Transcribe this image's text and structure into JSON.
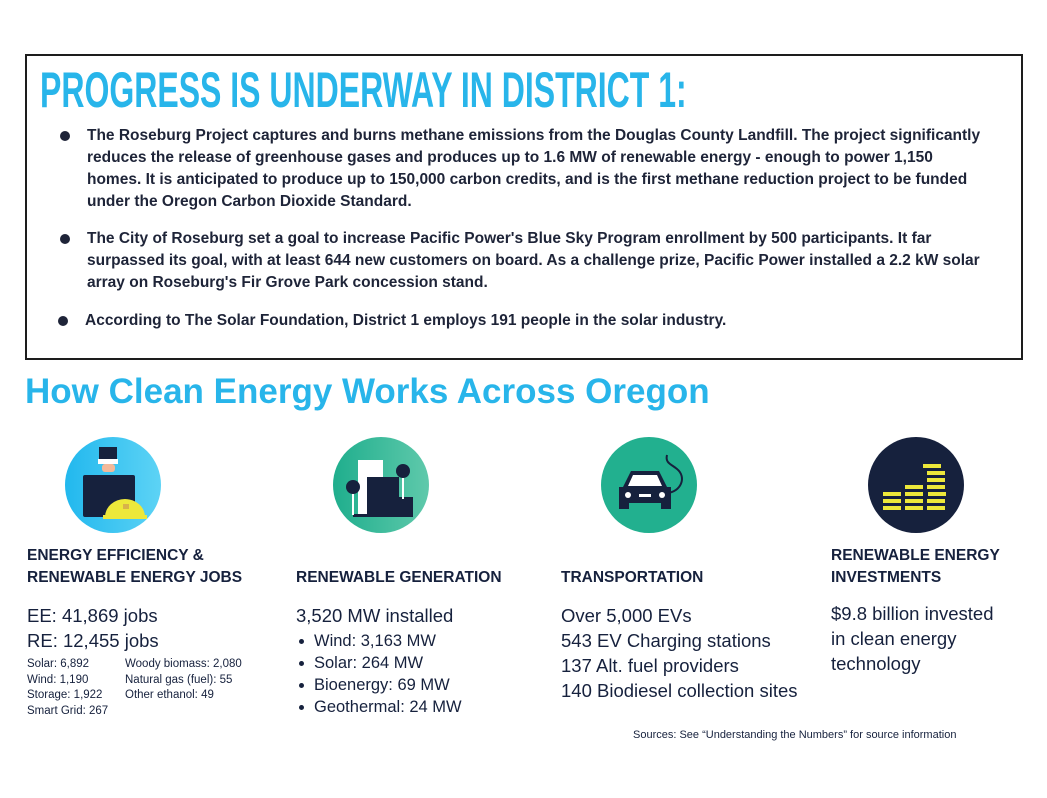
{
  "district": {
    "title": "PROGRESS IS UNDERWAY IN DISTRICT 1:",
    "bullets": [
      "The Roseburg Project captures and burns methane emissions from the Douglas County Landfill. The project significantly reduces the release of greenhouse gases and produces up to 1.6 MW of renewable energy - enough to power 1,150 homes. It is anticipated to produce up to 150,000 carbon credits, and is the first methane reduction project to be funded under the Oregon Carbon Dioxide Standard.",
      "The City of Roseburg set a goal to increase Pacific Power's Blue Sky Program enrollment by 500 participants. It far surpassed its goal, with at least 644 new customers on board. As a challenge prize, Pacific Power installed a 2.2 kW solar array on Roseburg's Fir Grove Park concession stand.",
      "According to The Solar Foundation, District 1 employs 191 people in the solar industry."
    ]
  },
  "section_title": "How Clean Energy Works Across Oregon",
  "columns": {
    "jobs": {
      "icon": "briefcase-hardhat-icon",
      "heading1": "ENERGY EFFICIENCY &",
      "heading2": "RENEWABLE ENERGY JOBS",
      "ee": "EE: 41,869 jobs",
      "re": "RE: 12,455 jobs",
      "breakdown_left": [
        "Solar: 6,892",
        "Wind: 1,190",
        "Storage: 1,922",
        "Smart Grid: 267"
      ],
      "breakdown_right": [
        "Woody biomass: 2,080",
        "Natural gas (fuel): 55",
        "Other ethanol: 49"
      ]
    },
    "generation": {
      "icon": "buildings-wind-turbine-icon",
      "heading": "RENEWABLE GENERATION",
      "total": "3,520 MW installed",
      "items": [
        "Wind: 3,163 MW",
        "Solar: 264 MW",
        "Bioenergy: 69 MW",
        "Geothermal: 24 MW"
      ]
    },
    "transportation": {
      "icon": "electric-car-icon",
      "heading": "TRANSPORTATION",
      "items": [
        "Over 5,000 EVs",
        "543 EV Charging stations",
        "137 Alt. fuel providers",
        "140 Biodiesel collection sites"
      ]
    },
    "investments": {
      "icon": "coin-stacks-icon",
      "heading1": "RENEWABLE ENERGY",
      "heading2": "INVESTMENTS",
      "lines": [
        "$9.8 billion invested",
        "in clean energy",
        "technology"
      ]
    }
  },
  "sources": "Sources: See “Understanding the Numbers” for source information",
  "colors": {
    "accent": "#28b5ea",
    "navy": "#16213d",
    "teal": "#22b08f",
    "yellow": "#ede83a"
  }
}
